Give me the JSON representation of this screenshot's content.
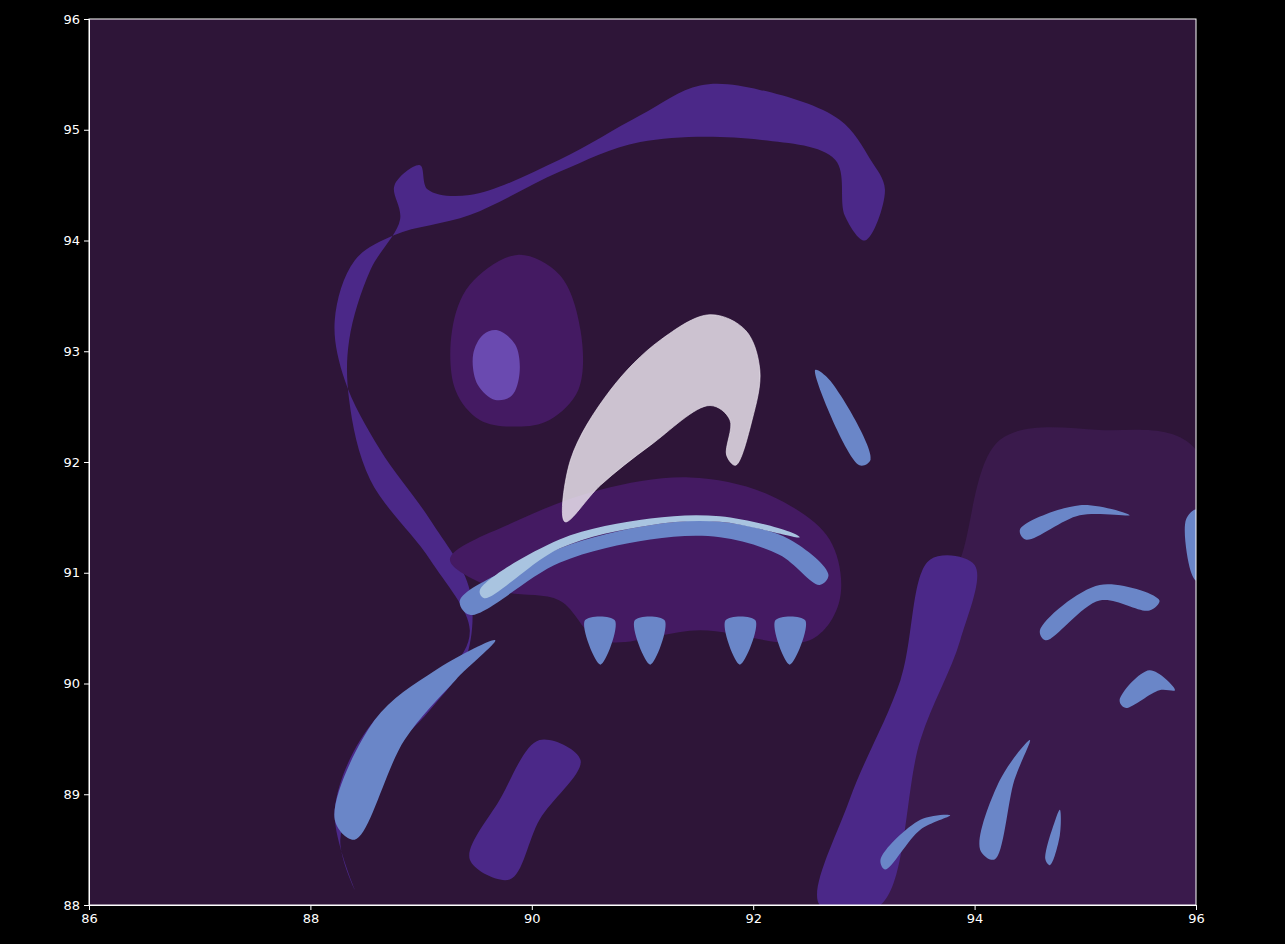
{
  "chart_data": {
    "type": "region_map",
    "xlim": [
      86,
      96
    ],
    "ylim": [
      88,
      96
    ],
    "xticks": [
      86,
      88,
      90,
      92,
      94,
      96
    ],
    "yticks": [
      88,
      89,
      90,
      91,
      92,
      93,
      94,
      95,
      96
    ],
    "regions": [
      {
        "color": "#3a1a4c",
        "points": [
          [
            93.87,
            91.12
          ],
          [
            94.23,
            92.2
          ],
          [
            95.13,
            92.29
          ],
          [
            96.0,
            92.11
          ],
          [
            96.0,
            88.0
          ],
          [
            92.96,
            88.0
          ],
          [
            93.06,
            88.95
          ],
          [
            93.33,
            89.85
          ],
          [
            93.69,
            90.75
          ]
        ]
      },
      {
        "color": "#4b2888",
        "points": [
          [
            88.76,
            94.5
          ],
          [
            88.99,
            94.68
          ],
          [
            89.06,
            94.46
          ],
          [
            89.44,
            94.41
          ],
          [
            90.25,
            94.73
          ],
          [
            90.98,
            95.13
          ],
          [
            91.52,
            95.4
          ],
          [
            92.06,
            95.36
          ],
          [
            92.78,
            95.09
          ],
          [
            93.06,
            94.73
          ],
          [
            93.19,
            94.46
          ],
          [
            93.01,
            94.0
          ],
          [
            92.83,
            94.22
          ],
          [
            92.74,
            94.73
          ],
          [
            92.06,
            94.91
          ],
          [
            90.98,
            94.89
          ],
          [
            90.25,
            94.62
          ],
          [
            89.44,
            94.23
          ],
          [
            88.76,
            94.05
          ],
          [
            88.4,
            93.82
          ],
          [
            88.22,
            93.28
          ],
          [
            88.31,
            92.74
          ],
          [
            88.63,
            92.11
          ],
          [
            89.08,
            91.48
          ],
          [
            89.44,
            90.84
          ],
          [
            89.4,
            90.21
          ],
          [
            89.08,
            89.76
          ],
          [
            88.49,
            89.13
          ],
          [
            88.27,
            88.59
          ],
          [
            88.4,
            88.14
          ],
          [
            88.22,
            88.86
          ],
          [
            88.58,
            89.67
          ],
          [
            89.26,
            90.12
          ],
          [
            89.44,
            90.48
          ],
          [
            89.08,
            91.12
          ],
          [
            88.54,
            91.84
          ],
          [
            88.35,
            92.56
          ],
          [
            88.35,
            93.1
          ],
          [
            88.54,
            93.73
          ],
          [
            88.81,
            94.19
          ]
        ]
      },
      {
        "color": "#6a86c8",
        "points": [
          [
            88.22,
            88.77
          ],
          [
            88.58,
            89.67
          ],
          [
            89.13,
            90.12
          ],
          [
            89.67,
            90.39
          ],
          [
            89.31,
            90.03
          ],
          [
            88.85,
            89.49
          ],
          [
            88.4,
            88.59
          ]
        ]
      },
      {
        "color": "#4b2888",
        "points": [
          [
            89.44,
            88.41
          ],
          [
            89.71,
            88.95
          ],
          [
            90.07,
            89.49
          ],
          [
            90.44,
            89.31
          ],
          [
            90.07,
            88.77
          ],
          [
            89.8,
            88.23
          ]
        ]
      },
      {
        "color": "#4b2888",
        "points": [
          [
            93.6,
            91.12
          ],
          [
            94.0,
            91.07
          ],
          [
            93.87,
            90.39
          ],
          [
            93.51,
            89.49
          ],
          [
            93.15,
            88.0
          ],
          [
            92.6,
            88.0
          ],
          [
            92.87,
            88.95
          ],
          [
            93.33,
            90.03
          ]
        ]
      },
      {
        "color": "#441a62",
        "points": [
          [
            89.87,
            93.87
          ],
          [
            90.25,
            93.69
          ],
          [
            90.44,
            93.19
          ],
          [
            90.42,
            92.65
          ],
          [
            90.16,
            92.38
          ],
          [
            89.87,
            92.32
          ],
          [
            89.53,
            92.38
          ],
          [
            89.31,
            92.65
          ],
          [
            89.28,
            93.19
          ],
          [
            89.44,
            93.6
          ]
        ]
      },
      {
        "color": "#6a4ab0",
        "points": [
          [
            89.69,
            93.19
          ],
          [
            89.85,
            93.06
          ],
          [
            89.89,
            92.81
          ],
          [
            89.82,
            92.6
          ],
          [
            89.67,
            92.56
          ],
          [
            89.51,
            92.7
          ],
          [
            89.47,
            92.97
          ],
          [
            89.56,
            93.15
          ]
        ]
      },
      {
        "color": "#441a62",
        "points": [
          [
            89.26,
            91.12
          ],
          [
            89.89,
            91.48
          ],
          [
            90.62,
            91.75
          ],
          [
            91.43,
            91.86
          ],
          [
            92.15,
            91.7
          ],
          [
            92.69,
            91.3
          ],
          [
            92.78,
            90.75
          ],
          [
            92.51,
            90.39
          ],
          [
            91.52,
            90.48
          ],
          [
            90.62,
            90.39
          ],
          [
            90.25,
            90.75
          ],
          [
            89.71,
            90.84
          ]
        ]
      },
      {
        "color": "#6a86c8",
        "points": [
          [
            89.35,
            90.75
          ],
          [
            90.25,
            91.22
          ],
          [
            91.07,
            91.43
          ],
          [
            91.7,
            91.46
          ],
          [
            92.33,
            91.3
          ],
          [
            92.68,
            90.98
          ],
          [
            92.6,
            90.89
          ],
          [
            92.24,
            91.16
          ],
          [
            91.7,
            91.32
          ],
          [
            91.07,
            91.3
          ],
          [
            90.25,
            91.09
          ],
          [
            89.44,
            90.62
          ]
        ]
      },
      {
        "color": "#a9c4e0",
        "points": [
          [
            89.53,
            90.84
          ],
          [
            90.25,
            91.3
          ],
          [
            91.07,
            91.49
          ],
          [
            91.7,
            91.51
          ],
          [
            92.33,
            91.37
          ],
          [
            92.42,
            91.32
          ],
          [
            91.7,
            91.46
          ],
          [
            91.07,
            91.43
          ],
          [
            90.25,
            91.22
          ],
          [
            89.57,
            90.77
          ]
        ]
      },
      {
        "color": "#6a86c8",
        "points": [
          [
            90.48,
            90.57
          ],
          [
            90.75,
            90.57
          ],
          [
            90.62,
            90.17
          ]
        ]
      },
      {
        "color": "#6a86c8",
        "points": [
          [
            90.93,
            90.57
          ],
          [
            91.2,
            90.57
          ],
          [
            91.07,
            90.17
          ]
        ]
      },
      {
        "color": "#6a86c8",
        "points": [
          [
            91.75,
            90.57
          ],
          [
            92.02,
            90.57
          ],
          [
            91.88,
            90.17
          ]
        ]
      },
      {
        "color": "#6a86c8",
        "points": [
          [
            92.2,
            90.57
          ],
          [
            92.47,
            90.57
          ],
          [
            92.33,
            90.17
          ]
        ]
      },
      {
        "color": "#6a86c8",
        "points": [
          [
            92.56,
            92.83
          ],
          [
            92.69,
            92.74
          ],
          [
            93.06,
            92.02
          ],
          [
            92.96,
            91.97
          ]
        ]
      },
      {
        "color": "#6a86c8",
        "points": [
          [
            94.59,
            90.48
          ],
          [
            95.13,
            90.89
          ],
          [
            95.67,
            90.75
          ],
          [
            95.58,
            90.66
          ],
          [
            95.13,
            90.75
          ],
          [
            94.64,
            90.39
          ]
        ]
      },
      {
        "color": "#6a86c8",
        "points": [
          [
            94.41,
            91.39
          ],
          [
            94.95,
            91.61
          ],
          [
            95.4,
            91.52
          ],
          [
            94.95,
            91.52
          ],
          [
            94.46,
            91.3
          ]
        ]
      },
      {
        "color": "#6a86c8",
        "points": [
          [
            94.05,
            88.5
          ],
          [
            94.23,
            89.13
          ],
          [
            94.5,
            89.49
          ],
          [
            94.36,
            89.13
          ],
          [
            94.18,
            88.41
          ]
        ]
      },
      {
        "color": "#6a86c8",
        "points": [
          [
            94.64,
            88.41
          ],
          [
            94.73,
            88.77
          ],
          [
            94.77,
            88.86
          ],
          [
            94.77,
            88.63
          ],
          [
            94.68,
            88.36
          ]
        ]
      },
      {
        "color": "#6a86c8",
        "points": [
          [
            95.31,
            89.85
          ],
          [
            95.58,
            90.12
          ],
          [
            95.81,
            89.94
          ],
          [
            95.67,
            89.94
          ],
          [
            95.36,
            89.78
          ]
        ]
      },
      {
        "color": "#6a86c8",
        "points": [
          [
            95.91,
            91.48
          ],
          [
            96.0,
            91.57
          ],
          [
            96.0,
            90.93
          ],
          [
            95.95,
            91.02
          ]
        ]
      },
      {
        "color": "#6a86c8",
        "points": [
          [
            93.15,
            88.41
          ],
          [
            93.51,
            88.77
          ],
          [
            93.78,
            88.81
          ],
          [
            93.51,
            88.68
          ],
          [
            93.19,
            88.32
          ]
        ]
      },
      {
        "color": "#f4eef6",
        "points": [
          [
            90.3,
            91.46
          ],
          [
            90.35,
            92.02
          ],
          [
            90.71,
            92.65
          ],
          [
            91.16,
            93.1
          ],
          [
            91.61,
            93.33
          ],
          [
            91.93,
            93.19
          ],
          [
            92.06,
            92.83
          ],
          [
            91.99,
            92.38
          ],
          [
            91.84,
            91.97
          ],
          [
            91.76,
            92.06
          ],
          [
            91.79,
            92.38
          ],
          [
            91.61,
            92.51
          ],
          [
            91.07,
            92.15
          ],
          [
            90.62,
            91.79
          ]
        ]
      }
    ]
  }
}
